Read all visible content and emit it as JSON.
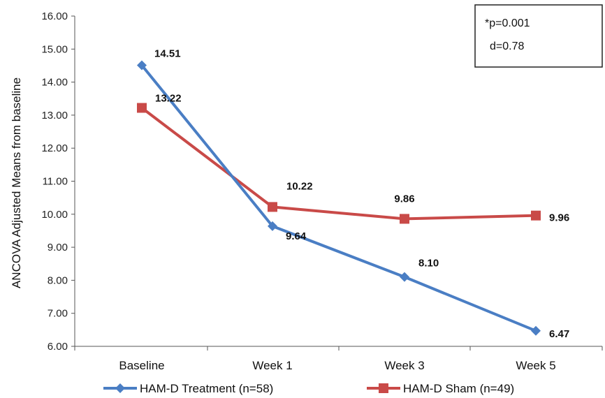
{
  "chart_data": {
    "type": "line",
    "categories": [
      "Baseline",
      "Week 1",
      "Week 3",
      "Week 5"
    ],
    "ylabel": "ANCOVA Adjusted Means from baseline",
    "ylim": [
      6.0,
      16.0
    ],
    "yticks": [
      "6.00",
      "7.00",
      "8.00",
      "9.00",
      "10.00",
      "11.00",
      "12.00",
      "13.00",
      "14.00",
      "15.00",
      "16.00"
    ],
    "grid": false,
    "legend_position": "bottom",
    "series": [
      {
        "name": "HAM-D Treatment (n=58)",
        "values": [
          14.51,
          9.64,
          8.1,
          6.47
        ],
        "labels": [
          "14.51",
          "9.64",
          "8.10",
          "6.47"
        ],
        "color": "#4a7ec4",
        "marker": "diamond"
      },
      {
        "name": "HAM-D Sham (n=49)",
        "values": [
          13.22,
          10.22,
          9.86,
          9.96
        ],
        "labels": [
          "13.22",
          "10.22",
          "9.86",
          "9.96"
        ],
        "color": "#c94a48",
        "marker": "square"
      }
    ],
    "annotation": [
      "*p=0.001",
      "d=0.78"
    ]
  }
}
